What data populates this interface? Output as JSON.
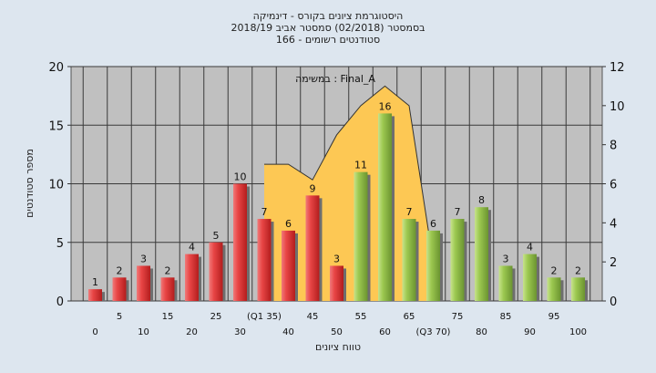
{
  "header": {
    "title_line1": "היסטוגרמת ציונים בקורס - דינמיקה",
    "title_line2": "בסמסטר  (02/2018)  סמסטר אביב 2018/19",
    "title_line3": "סטודנטים רשומים - 166"
  },
  "chart_data": {
    "type": "bar",
    "title": "היסטוגרמת ציונים בקורס - דינמיקה",
    "subtitle": "בסמסטר  (02/2018)  סמסטר אביב 2018/19",
    "subtitle2": "סטודנטים רשומים - 166",
    "annotation": "במשימה : Final_A",
    "xlabel": "טווח ציונים",
    "ylabel": "מספר סטודנטים",
    "ylim": [
      0,
      20
    ],
    "y_ticks": [
      "0",
      "5",
      "10",
      "15",
      "20"
    ],
    "y2lim": [
      0,
      12
    ],
    "y2_ticks": [
      "0",
      "2",
      "4",
      "6",
      "8",
      "10",
      "12"
    ],
    "categories": [
      "0",
      "5",
      "10",
      "15",
      "20",
      "25",
      "30",
      "(Q1 35)",
      "40",
      "45",
      "50",
      "55",
      "60",
      "65",
      "(Q3 70)",
      "75",
      "80",
      "85",
      "90",
      "95",
      "100"
    ],
    "values": [
      1,
      2,
      3,
      2,
      4,
      5,
      10,
      7,
      6,
      9,
      3,
      11,
      16,
      7,
      6,
      7,
      8,
      3,
      4,
      2,
      2
    ],
    "bar_groups": [
      "red",
      "red",
      "red",
      "red",
      "red",
      "red",
      "red",
      "red",
      "red",
      "red",
      "red",
      "green",
      "green",
      "green",
      "green",
      "green",
      "green",
      "green",
      "green",
      "green",
      "green"
    ],
    "band": {
      "x_categories": [
        "(Q1 35)",
        "40",
        "45",
        "50",
        "55",
        "60",
        "65",
        "(Q3 70)"
      ],
      "y2_values": [
        7,
        7,
        6.2,
        8.5,
        10,
        11,
        10,
        2
      ]
    },
    "grid": true,
    "colors": {
      "background": "#dde6ef",
      "plot": "#c0c0c0",
      "red_bar": "#e23b3b",
      "green_bar": "#93c24a",
      "band": "#fdc854"
    }
  }
}
